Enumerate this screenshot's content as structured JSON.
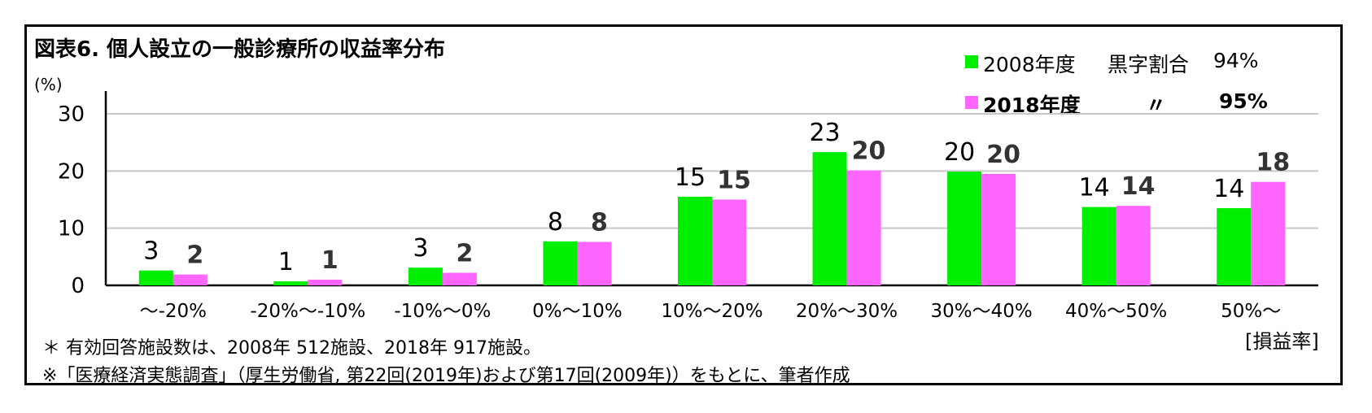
{
  "title": "図表6. 個人設立の一般診療所の収益率分布",
  "y_unit": "(%)",
  "x_unit": "[損益率]",
  "legend": [
    {
      "name": "2008年度",
      "label": "黒字割合",
      "value": "94%",
      "color": "#00ee00",
      "bold": false
    },
    {
      "name": "2018年度",
      "label": "〃",
      "value": "95%",
      "color": "#ff66ff",
      "bold": true
    }
  ],
  "notes": [
    "＊ 有効回答施設数は、2008年 512施設、2018年 917施設。",
    "※「医療経済実態調査」（厚生労働省, 第22回(2019年)および第17回(2009年)）をもとに、筆者作成"
  ],
  "chart_data": {
    "type": "bar",
    "categories": [
      "～-20%",
      "-20%～-10%",
      "-10%～0%",
      "0%～10%",
      "10%～20%",
      "20%～30%",
      "30%～40%",
      "40%～50%",
      "50%～"
    ],
    "series": [
      {
        "name": "2008年度",
        "values": [
          2.6,
          0.7,
          3.1,
          7.7,
          15.5,
          23.3,
          19.9,
          13.7,
          13.5
        ],
        "labels": [
          "3",
          "1",
          "3",
          "8",
          "15",
          "23",
          "20",
          "14",
          "14"
        ],
        "color": "#00ee00"
      },
      {
        "name": "2018年度",
        "values": [
          1.9,
          1.0,
          2.2,
          7.6,
          15.0,
          20.1,
          19.5,
          13.9,
          18.1
        ],
        "labels": [
          "2",
          "1",
          "2",
          "8",
          "15",
          "20",
          "20",
          "14",
          "18"
        ],
        "color": "#ff66ff"
      }
    ],
    "ylim": [
      0,
      30
    ],
    "yticks": [
      0,
      10,
      20,
      30
    ],
    "grid": true,
    "legend_position": "top-right"
  }
}
